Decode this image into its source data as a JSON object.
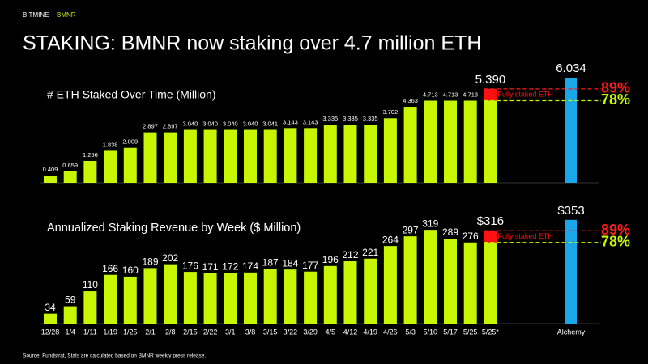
{
  "header": {
    "brand": "BITMINE ·",
    "ticker": "BMNR",
    "title": "STAKING: BMNR now staking over 4.7 million ETH",
    "source": "Source: Fundstrat, Stats are calculated based on BMNR weekly press release."
  },
  "chart_data": [
    {
      "type": "bar",
      "title": "# ETH Staked Over Time (Million)",
      "values": [
        0.409,
        0.659,
        1.256,
        1.838,
        2.009,
        2.897,
        2.897,
        3.04,
        3.04,
        3.04,
        3.04,
        3.041,
        3.143,
        3.143,
        3.335,
        3.335,
        3.335,
        3.702,
        4.363,
        4.713,
        4.713,
        4.713,
        5.39,
        6.034
      ],
      "value_labels": [
        "0.409",
        "0.659",
        "1.256",
        "1.838",
        "2.009",
        "2.897",
        "2.897",
        "3.040",
        "3.040",
        "3.040",
        "3.040",
        "3.041",
        "3.143",
        "3.143",
        "3.335",
        "3.335",
        "3.335",
        "3.702",
        "4.363",
        "4.713",
        "4.713",
        "4.713",
        "5.390",
        "6.034"
      ],
      "color": "#c8f500",
      "accent_color": "#1aa7ea",
      "fully_staked_color": "#ff1010",
      "fully_staked_label": "Fully staked ETH",
      "ratio_labels": [
        {
          "label": "89%",
          "color": "#ff1a1a"
        },
        {
          "label": "78%",
          "color": "#c8f500"
        }
      ],
      "ylim": [
        0,
        6.5
      ]
    },
    {
      "type": "bar",
      "title": "Annualized Staking Revenue by Week ($ Million)",
      "categories": [
        "12/28",
        "1/4",
        "1/11",
        "1/19",
        "1/25",
        "2/1",
        "2/8",
        "2/15",
        "2/22",
        "3/1",
        "3/8",
        "3/15",
        "3/22",
        "3/29",
        "4/5",
        "4/12",
        "4/19",
        "4/26",
        "5/3",
        "5/10",
        "5/17",
        "5/25",
        "5/25*",
        "Alchemy"
      ],
      "values": [
        34,
        59,
        110,
        166,
        160,
        189,
        202,
        176,
        171,
        172,
        174,
        187,
        184,
        177,
        196,
        212,
        221,
        264,
        297,
        319,
        289,
        276,
        316,
        353
      ],
      "value_labels": [
        "34",
        "59",
        "110",
        "166",
        "160",
        "189",
        "202",
        "176",
        "171",
        "172",
        "174",
        "187",
        "184",
        "177",
        "196",
        "212",
        "221",
        "264",
        "297",
        "319",
        "289",
        "276",
        "$316",
        "$353"
      ],
      "color": "#c8f500",
      "accent_color": "#1aa7ea",
      "fully_staked_color": "#ff1010",
      "fully_staked_label": "Fully staked ETH",
      "ratio_labels": [
        {
          "label": "89%",
          "color": "#ff1a1a"
        },
        {
          "label": "78%",
          "color": "#c8f500"
        }
      ],
      "ylim": [
        0,
        380
      ]
    }
  ]
}
